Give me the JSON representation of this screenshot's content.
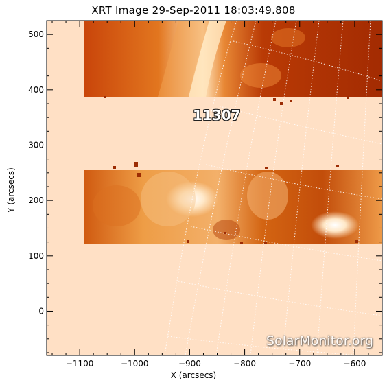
{
  "title": "XRT Image 29-Sep-2011 18:03:49.808",
  "axes": {
    "xlabel": "X (arcsecs)",
    "ylabel": "Y (arcsecs)",
    "xlim": [
      -1160,
      -550
    ],
    "ylim": [
      -80,
      525
    ],
    "x_ticks": [
      -1100,
      -1000,
      -900,
      -800,
      -700,
      -600
    ],
    "y_ticks": [
      0,
      100,
      200,
      300,
      400,
      500
    ]
  },
  "regions": [
    {
      "label": "11307"
    }
  ],
  "watermark": "SolarMonitor.org",
  "colors": {
    "background": "#ffe0c5",
    "sun_dark": "#8a2000",
    "sun_mid": "#d75a0c",
    "sun_bright": "#ffd8aa",
    "grid": "#ffffff"
  }
}
